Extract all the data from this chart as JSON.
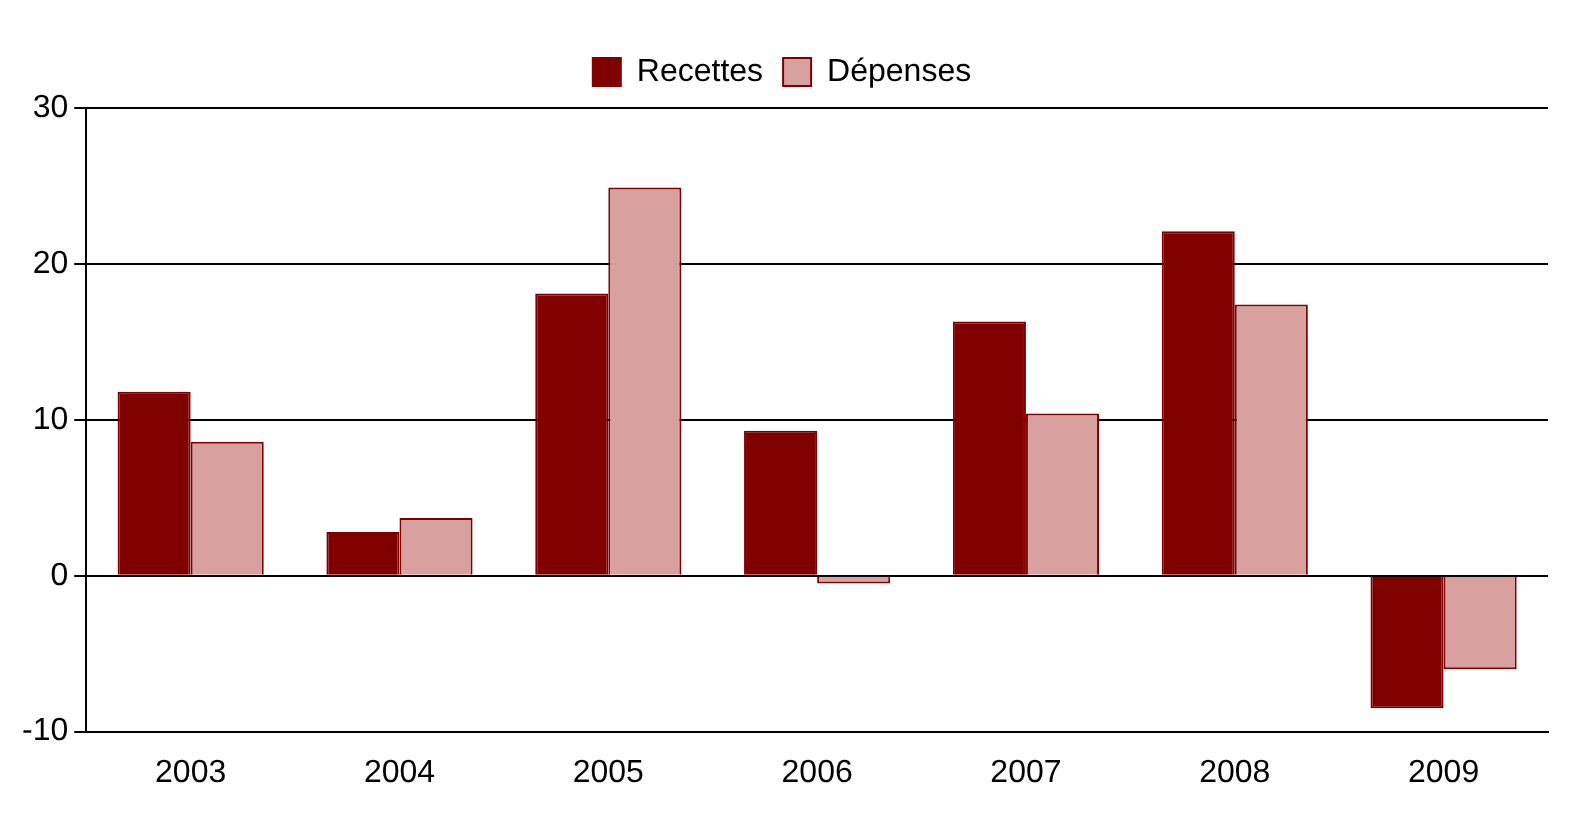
{
  "chart_data": {
    "type": "bar",
    "categories": [
      "2003",
      "2004",
      "2005",
      "2006",
      "2007",
      "2008",
      "2009"
    ],
    "series": [
      {
        "name": "Recettes",
        "color": "#800000",
        "values": [
          11.8,
          2.8,
          18.1,
          9.3,
          16.3,
          22.1,
          -8.5
        ]
      },
      {
        "name": "Dépenses",
        "color": "#d9a0a0",
        "values": [
          8.6,
          3.7,
          24.9,
          -0.5,
          10.4,
          17.4,
          -6.0
        ]
      }
    ],
    "ylim": [
      -10,
      30
    ],
    "yticks": [
      -10,
      0,
      10,
      20,
      30
    ],
    "grid": "y",
    "legend": "top"
  }
}
